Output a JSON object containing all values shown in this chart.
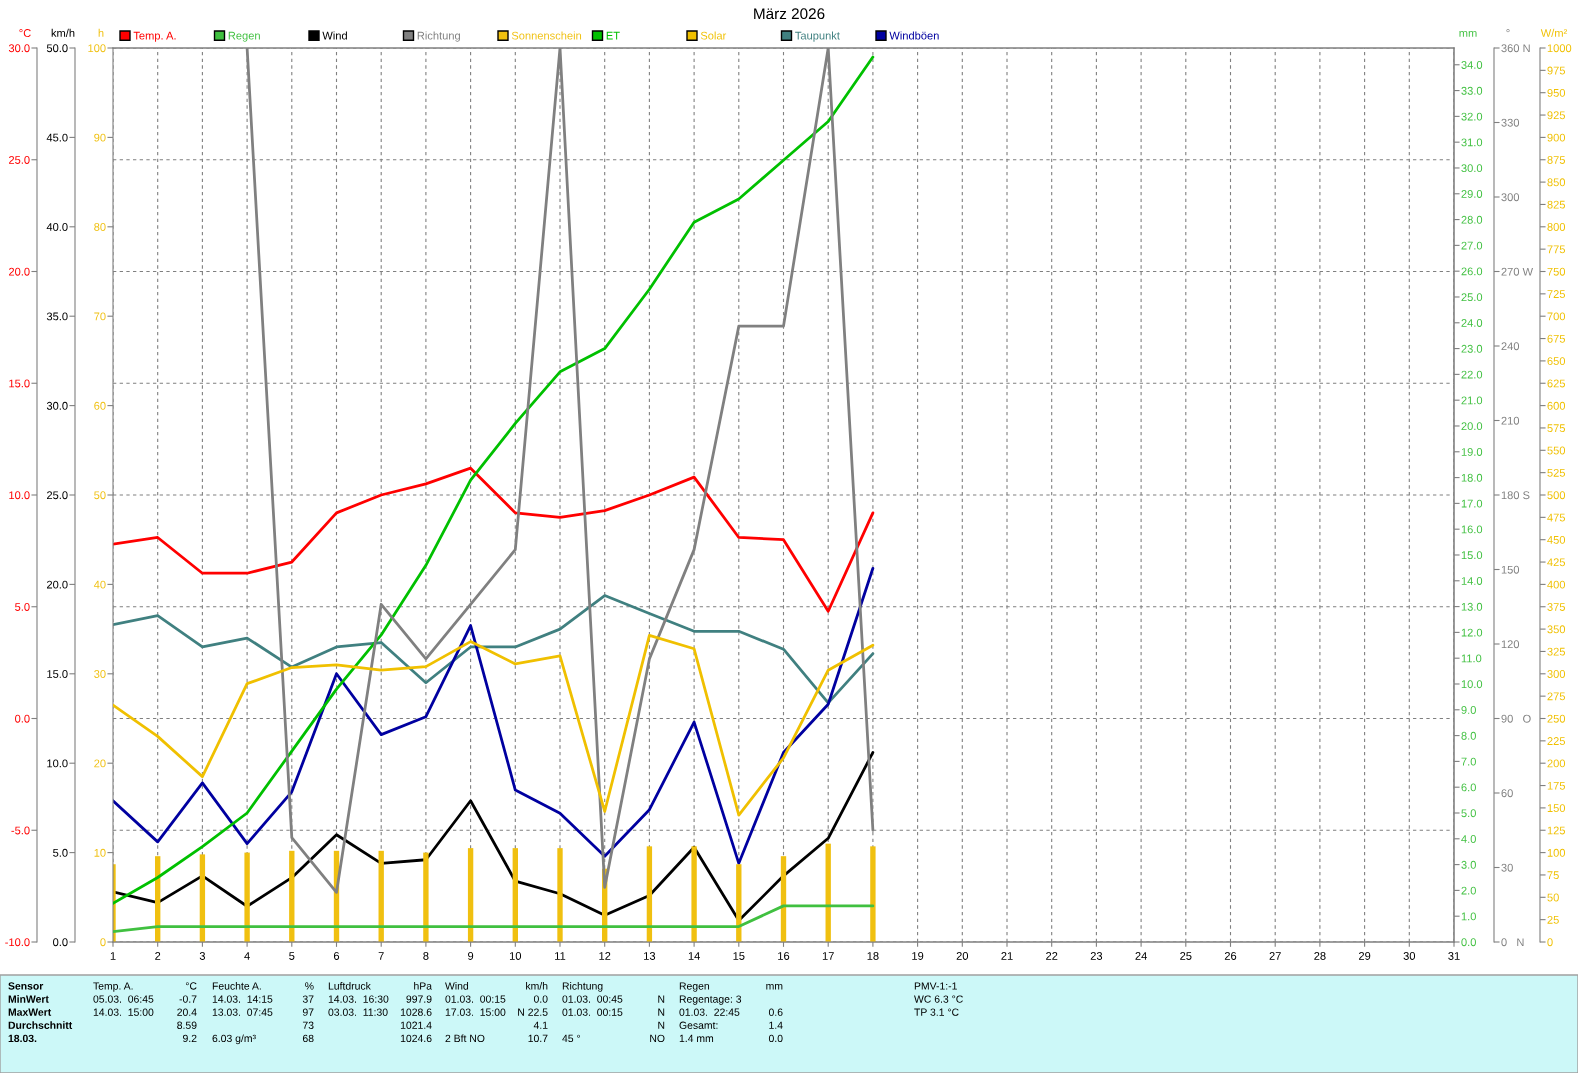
{
  "chart_data": [
    {
      "type": "line",
      "title": "März 2026",
      "x": [
        1,
        2,
        3,
        4,
        5,
        6,
        7,
        8,
        9,
        10,
        11,
        12,
        13,
        14,
        15,
        16,
        17,
        18
      ],
      "xlim": [
        1,
        31
      ],
      "xticks": [
        1,
        2,
        3,
        4,
        5,
        6,
        7,
        8,
        9,
        10,
        11,
        12,
        13,
        14,
        15,
        16,
        17,
        18,
        19,
        20,
        21,
        22,
        23,
        24,
        25,
        26,
        27,
        28,
        29,
        30,
        31
      ],
      "ylabel": "°C",
      "ylim": [
        -10,
        30
      ],
      "yticks": [
        {
          "value": -10,
          "label": "-10.0"
        },
        {
          "value": -5,
          "label": "-5.0"
        },
        {
          "value": 0,
          "label": "0.0"
        },
        {
          "value": 5,
          "label": "5.0"
        },
        {
          "value": 10,
          "label": "10.0"
        },
        {
          "value": 15,
          "label": "15.0"
        },
        {
          "value": 20,
          "label": "20.0"
        },
        {
          "value": 25,
          "label": "25.0"
        },
        {
          "value": 30,
          "label": "30.0"
        }
      ],
      "y2label": "km/h",
      "y2lim": [
        0,
        50
      ],
      "y2ticks": [
        {
          "value": 0,
          "label": "0.0"
        },
        {
          "value": 5,
          "label": "5.0"
        },
        {
          "value": 10,
          "label": "10.0"
        },
        {
          "value": 15,
          "label": "15.0"
        },
        {
          "value": 20,
          "label": "20.0"
        },
        {
          "value": 25,
          "label": "25.0"
        },
        {
          "value": 30,
          "label": "30.0"
        },
        {
          "value": 35,
          "label": "35.0"
        },
        {
          "value": 40,
          "label": "40.0"
        },
        {
          "value": 45,
          "label": "45.0"
        },
        {
          "value": 50,
          "label": "50.0"
        }
      ],
      "y3label": "h",
      "y3lim": [
        0,
        100
      ],
      "y3ticks": [
        0,
        10,
        20,
        30,
        40,
        50,
        60,
        70,
        80,
        90,
        100
      ],
      "grid": true,
      "legend": "top",
      "series": [
        {
          "name": "Temp. A.",
          "color": "#ff0000",
          "values": [
            7.8,
            8.1,
            6.5,
            6.5,
            7.0,
            9.2,
            10.0,
            10.5,
            11.2,
            9.2,
            9.0,
            9.3,
            10.0,
            10.8,
            8.1,
            8.0,
            4.8,
            9.2
          ]
        },
        {
          "name": "Wind",
          "color": "#000000",
          "axis": "y2",
          "values": [
            2.8,
            2.2,
            3.7,
            2.0,
            3.6,
            6.0,
            4.4,
            4.6,
            7.9,
            3.4,
            2.7,
            1.5,
            2.6,
            5.3,
            1.2,
            3.7,
            5.8,
            10.6
          ]
        },
        {
          "name": "Sonnenschein",
          "color": "#f0c010",
          "axis": "y3",
          "type": "bar",
          "values": [
            8.7,
            9.6,
            9.8,
            10.0,
            10.2,
            10.2,
            10.2,
            10.0,
            10.5,
            10.5,
            10.5,
            8.2,
            10.7,
            10.7,
            8.7,
            9.6,
            11.0,
            10.7
          ]
        },
        {
          "name": "Taupunkt",
          "color": "#408080",
          "values": [
            4.2,
            4.6,
            3.2,
            3.6,
            2.3,
            3.2,
            3.4,
            1.6,
            3.2,
            3.2,
            4.0,
            5.5,
            4.7,
            3.9,
            3.9,
            3.1,
            0.7,
            2.9
          ]
        },
        {
          "name": "Windböen",
          "color": "#0000a0",
          "axis": "y2",
          "values": [
            7.9,
            5.6,
            8.9,
            5.5,
            8.4,
            15.0,
            11.6,
            12.6,
            17.7,
            8.5,
            7.2,
            4.8,
            7.4,
            12.3,
            4.4,
            10.6,
            13.3,
            20.9
          ]
        }
      ],
      "annotations": [
        "Sensor\nMinWert\nMaxWert\nDurchschnitt\n18.03.",
        "Temp. A.\n05.03.  06:45\n14.03.  15:00\n\n",
        "°C\n-0.7\n20.4\n8.59\n9.2",
        "Feuchte A.\n14.03.  14:15\n13.03.  07:45\n\n6.03 g/m³",
        "%\n37\n97\n73\n68",
        "Luftdruck\n14.03.  16:30\n03.03.  11:30\n\n",
        "hPa\n997.9\n1028.6\n1021.4\n1024.6",
        "Wind\n01.03.  00:15\n17.03.  15:00\n\n2 Bft NO",
        "km/h\n0.0\nN 22.5\n4.1\n10.7",
        "Richtung\n01.03.  00:45\n01.03.  00:15\n\n45 °",
        "\nN\nN\nN\nNO",
        "Regen\nRegentage: 3\n01.03.  22:45\nGesamt:\n1.4 mm",
        "mm\n\n0.6\n1.4\n0.0",
        "PMV-1:-1\nWC 6.3 °C\nTP 3.1 °C"
      ]
    },
    {
      "type": "line",
      "x": [
        1,
        2,
        3,
        4,
        5,
        6,
        7,
        8,
        9,
        10,
        11,
        12,
        13,
        14,
        15,
        16,
        17,
        18
      ],
      "xlim": [
        1,
        31
      ],
      "tick_labels": "y",
      "ylabel": "mm",
      "ylim": [
        0,
        34.65
      ],
      "yticks": [
        {
          "value": 0,
          "label": "0.0"
        },
        {
          "value": 1,
          "label": "1.0"
        },
        {
          "value": 2,
          "label": "2.0"
        },
        {
          "value": 3,
          "label": "3.0"
        },
        {
          "value": 4,
          "label": "4.0"
        },
        {
          "value": 5,
          "label": "5.0"
        },
        {
          "value": 6,
          "label": "6.0"
        },
        {
          "value": 7,
          "label": "7.0"
        },
        {
          "value": 8,
          "label": "8.0"
        },
        {
          "value": 9,
          "label": "9.0"
        },
        {
          "value": 10,
          "label": "10.0"
        },
        {
          "value": 11,
          "label": "11.0"
        },
        {
          "value": 12,
          "label": "12.0"
        },
        {
          "value": 13,
          "label": "13.0"
        },
        {
          "value": 14,
          "label": "14.0"
        },
        {
          "value": 15,
          "label": "15.0"
        },
        {
          "value": 16,
          "label": "16.0"
        },
        {
          "value": 17,
          "label": "17.0"
        },
        {
          "value": 18,
          "label": "18.0"
        },
        {
          "value": 19,
          "label": "19.0"
        },
        {
          "value": 20,
          "label": "20.0"
        },
        {
          "value": 21,
          "label": "21.0"
        },
        {
          "value": 22,
          "label": "22.0"
        },
        {
          "value": 23,
          "label": "23.0"
        },
        {
          "value": 24,
          "label": "24.0"
        },
        {
          "value": 25,
          "label": "25.0"
        },
        {
          "value": 26,
          "label": "26.0"
        },
        {
          "value": 27,
          "label": "27.0"
        },
        {
          "value": 28,
          "label": "28.0"
        },
        {
          "value": 29,
          "label": "29.0"
        },
        {
          "value": 30,
          "label": "30.0"
        },
        {
          "value": 31,
          "label": "31.0"
        },
        {
          "value": 32,
          "label": "32.0"
        },
        {
          "value": 33,
          "label": "33.0"
        },
        {
          "value": 34,
          "label": "34.0"
        }
      ],
      "y2label": "°",
      "y2lim": [
        0,
        360
      ],
      "y2ticks": [
        {
          "value": 0,
          "label": "0   N"
        },
        30,
        60,
        {
          "value": 90,
          "label": "90   O"
        },
        120,
        150,
        {
          "value": 180,
          "label": "180 S"
        },
        210,
        240,
        {
          "value": 270,
          "label": "270 W"
        },
        300,
        330,
        {
          "value": 360,
          "label": "360 N"
        }
      ],
      "y3label": "W/m²",
      "y3lim": [
        0,
        1000
      ],
      "y3ticks": [
        0,
        25,
        50,
        75,
        100,
        125,
        150,
        175,
        200,
        225,
        250,
        275,
        300,
        325,
        350,
        375,
        400,
        425,
        450,
        475,
        500,
        525,
        550,
        575,
        600,
        625,
        650,
        675,
        700,
        725,
        750,
        775,
        800,
        825,
        850,
        875,
        900,
        925,
        950,
        975,
        1000
      ],
      "legend": "top",
      "series": [
        {
          "name": "Regen",
          "color": "#40c040",
          "values": [
            0.4,
            0.6,
            0.6,
            0.6,
            0.6,
            0.6,
            0.6,
            0.6,
            0.6,
            0.6,
            0.6,
            0.6,
            0.6,
            0.6,
            0.6,
            1.4,
            1.4,
            1.4
          ]
        },
        {
          "name": "Richtung",
          "color": "#808080",
          "axis": "y2",
          "values": [
            null,
            null,
            null,
            360,
            42,
            20,
            136,
            114,
            136,
            158,
            360,
            22,
            114,
            158,
            248,
            248,
            360,
            45
          ]
        },
        {
          "name": "ET",
          "color": "#00c000",
          "values": [
            1.5,
            2.5,
            3.7,
            5.0,
            7.4,
            9.8,
            11.9,
            14.6,
            17.9,
            20.1,
            22.1,
            23.0,
            25.3,
            27.9,
            28.8,
            30.3,
            31.8,
            34.3
          ]
        },
        {
          "name": "Solar",
          "color": "#f0c000",
          "axis": "y3",
          "values": [
            265,
            230,
            185,
            289,
            307,
            310,
            304,
            308,
            336,
            311,
            320,
            146,
            343,
            328,
            142,
            206,
            304,
            332
          ]
        }
      ]
    }
  ]
}
